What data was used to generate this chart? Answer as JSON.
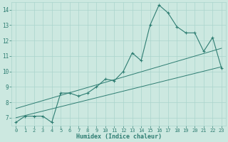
{
  "title": "",
  "xlabel": "Humidex (Indice chaleur)",
  "ylabel": "",
  "bg_color": "#cce8e0",
  "line_color": "#2e7d72",
  "xlim": [
    -0.5,
    23.5
  ],
  "ylim": [
    6.5,
    14.5
  ],
  "xticks": [
    0,
    1,
    2,
    3,
    4,
    5,
    6,
    7,
    8,
    9,
    10,
    11,
    12,
    13,
    14,
    15,
    16,
    17,
    18,
    19,
    20,
    21,
    22,
    23
  ],
  "yticks": [
    7,
    8,
    9,
    10,
    11,
    12,
    13,
    14
  ],
  "main_line_x": [
    0,
    1,
    2,
    3,
    4,
    5,
    6,
    7,
    8,
    9,
    10,
    11,
    12,
    13,
    14,
    15,
    16,
    17,
    18,
    19,
    20,
    21,
    22,
    23
  ],
  "main_line_y": [
    6.7,
    7.1,
    7.1,
    7.1,
    6.7,
    8.6,
    8.6,
    8.4,
    8.6,
    9.0,
    9.5,
    9.4,
    10.0,
    11.2,
    10.7,
    13.0,
    14.3,
    13.8,
    12.9,
    12.5,
    12.5,
    11.3,
    12.2,
    10.2
  ],
  "ref_line1_x": [
    0,
    23
  ],
  "ref_line1_y": [
    7.0,
    10.3
  ],
  "ref_line2_x": [
    0,
    23
  ],
  "ref_line2_y": [
    7.6,
    11.5
  ],
  "grid_color": "#aad4cc",
  "font_color": "#2e7d72",
  "tick_fontsize": 5.0,
  "xlabel_fontsize": 6.0
}
